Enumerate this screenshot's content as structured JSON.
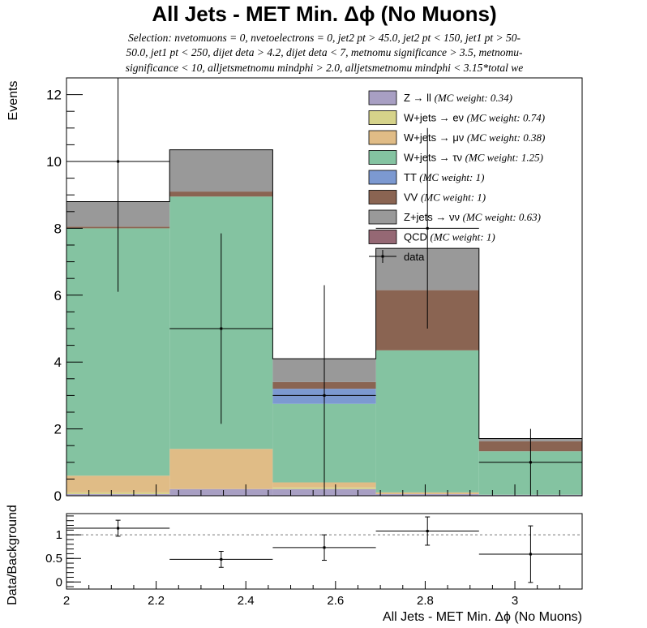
{
  "chart_data": [
    {
      "type": "stacked-bar",
      "title": "All Jets - MET Min. Δϕ (No Muons)",
      "subtitle_lines": [
        "Selection: nvetomuons = 0, nvetoelectrons = 0, jet2 pt > 45.0, jet2 pt < 150, jet1 pt > 50-",
        "50.0, jet1 pt < 250, dijet deta > 4.2, dijet deta < 7, metnomu significance > 3.5, metnomu-",
        "significance < 10, alljetsmetnomu mindphi > 2.0, alljetsmetnomu mindphi < 3.15*total we"
      ],
      "ylabel": "Events",
      "xlim": [
        2.0,
        3.15
      ],
      "ylim": [
        0,
        12.5
      ],
      "y_ticks": [
        "0",
        "2",
        "4",
        "6",
        "8",
        "10",
        "12"
      ],
      "bin_edges": [
        2.0,
        2.23,
        2.46,
        2.69,
        2.92,
        3.15
      ],
      "series": [
        {
          "name": "Z → ll",
          "weight": "(MC weight: 0.34)",
          "color": "#a89fc3",
          "values": [
            0.05,
            0.2,
            0.2,
            0.05,
            0.03
          ]
        },
        {
          "name": "W+jets → eν",
          "weight": "(MC weight: 0.74)",
          "color": "#d6d38a",
          "values": [
            0.05,
            0.0,
            0.05,
            0.0,
            0.0
          ]
        },
        {
          "name": "W+jets → μν",
          "weight": "(MC weight: 0.38)",
          "color": "#e0bc86",
          "values": [
            0.5,
            1.2,
            0.15,
            0.05,
            0.0
          ]
        },
        {
          "name": "W+jets → τν",
          "weight": "(MC weight: 1.25)",
          "color": "#84c3a1",
          "values": [
            7.4,
            7.55,
            2.35,
            4.25,
            1.3
          ]
        },
        {
          "name": "TT",
          "weight": "(MC weight: 1)",
          "color": "#7c99d1",
          "values": [
            0.0,
            0.0,
            0.45,
            0.0,
            0.0
          ]
        },
        {
          "name": "VV",
          "weight": "(MC weight: 1)",
          "color": "#8a6452",
          "values": [
            0.05,
            0.15,
            0.2,
            1.8,
            0.3
          ]
        },
        {
          "name": "Z+jets → νν",
          "weight": "(MC weight: 0.63)",
          "color": "#999999",
          "values": [
            0.75,
            1.25,
            0.7,
            1.25,
            0.08
          ]
        },
        {
          "name": "QCD",
          "weight": "(MC weight: 1)",
          "color": "#956874",
          "values": [
            0.0,
            0.0,
            0.0,
            0.0,
            0.0
          ]
        }
      ],
      "data": {
        "name": "data",
        "x": [
          2.115,
          2.345,
          2.575,
          2.805,
          3.035
        ],
        "y": [
          10,
          5,
          3,
          8,
          1
        ],
        "yerr": [
          3.9,
          2.85,
          3.3,
          3.0,
          1.0
        ]
      }
    },
    {
      "type": "ratio",
      "ylabel": "Data/Background",
      "xlabel": "All Jets - MET Min. Δϕ (No Muons)",
      "xlim": [
        2.0,
        3.15
      ],
      "ylim": [
        -0.15,
        1.45
      ],
      "x_ticks": [
        "2",
        "2.2",
        "2.4",
        "2.6",
        "2.8",
        "3"
      ],
      "y_ticks": [
        "0",
        "0.5",
        "1"
      ],
      "reference_line": 1,
      "x": [
        2.115,
        2.345,
        2.575,
        2.805,
        3.035
      ],
      "values": [
        1.14,
        0.48,
        0.73,
        1.08,
        0.59
      ],
      "yerr": [
        0.17,
        0.17,
        0.27,
        0.3,
        0.6
      ]
    }
  ]
}
